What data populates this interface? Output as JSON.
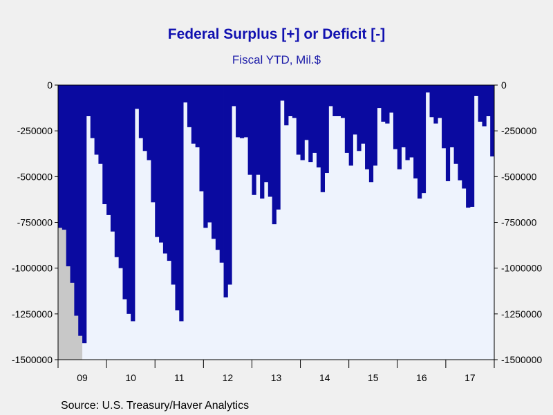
{
  "chart_data": {
    "type": "bar",
    "title": "Federal Surplus [+] or Deficit [-]",
    "subtitle": "Fiscal YTD, Mil.$",
    "source": "Source:  U.S. Treasury/Haver Analytics",
    "ylim": [
      -1500000,
      0
    ],
    "yticks": [
      0,
      -250000,
      -500000,
      -750000,
      -1000000,
      -1250000,
      -1500000
    ],
    "ytick_labels": [
      "0",
      "-250000",
      "-500000",
      "-750000",
      "-1000000",
      "-1250000",
      "-1500000"
    ],
    "x_start": "2009-01",
    "x_end": "2017-12",
    "xtick_labels": [
      "09",
      "10",
      "11",
      "12",
      "13",
      "14",
      "15",
      "16",
      "17"
    ],
    "recession_shading": {
      "from": "2009-01",
      "to": "2009-06",
      "color": "#c8c8c8"
    },
    "colors": {
      "bar": "#0a0aa0",
      "plot_bg": "#eef3fd",
      "page_bg": "#f0f0f0",
      "title": "#1010b0"
    },
    "series": [
      {
        "values": [
          -780000,
          -790000,
          -990000,
          -1080000,
          -1260000,
          -1370000,
          -1410000,
          -170000,
          -290000,
          -380000,
          -430000,
          -650000,
          -710000,
          -800000,
          -940000,
          -1000000,
          -1170000,
          -1250000,
          -1290000,
          -130000,
          -290000,
          -360000,
          -410000,
          -640000,
          -830000,
          -860000,
          -920000,
          -960000,
          -1090000,
          -1230000,
          -1290000,
          -95000,
          -230000,
          -320000,
          -340000,
          -580000,
          -780000,
          -750000,
          -840000,
          -900000,
          -970000,
          -1160000,
          -1090000,
          -115000,
          -285000,
          -290000,
          -285000,
          -490000,
          -600000,
          -490000,
          -620000,
          -530000,
          -610000,
          -760000,
          -680000,
          -85000,
          -220000,
          -170000,
          -180000,
          -380000,
          -410000,
          -300000,
          -420000,
          -370000,
          -450000,
          -585000,
          -480000,
          -115000,
          -170000,
          -170000,
          -180000,
          -370000,
          -440000,
          -270000,
          -360000,
          -320000,
          -460000,
          -530000,
          -440000,
          -125000,
          -200000,
          -210000,
          -150000,
          -350000,
          -460000,
          -340000,
          -410000,
          -395000,
          -510000,
          -620000,
          -590000,
          -40000,
          -175000,
          -210000,
          -180000,
          -345000,
          -525000,
          -340000,
          -430000,
          -520000,
          -565000,
          -670000,
          -665000,
          -60000,
          -200000,
          -225000,
          -170000,
          -390000
        ]
      }
    ]
  }
}
